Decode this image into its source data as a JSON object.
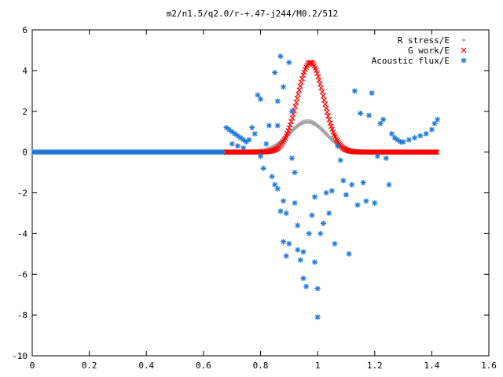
{
  "chart_data": {
    "type": "scatter",
    "title": "m2/n1.5/q2.0/r-+.47-j244/M0.2/512",
    "xlabel": "",
    "ylabel": "",
    "xlim": [
      0,
      1.6
    ],
    "ylim": [
      -10,
      6
    ],
    "x_ticks": [
      "0",
      "0.2",
      "0.4",
      "0.6",
      "0.8",
      "1",
      "1.2",
      "1.4",
      "1.6"
    ],
    "y_ticks": [
      "-10",
      "-8",
      "-6",
      "-4",
      "-2",
      "0",
      "2",
      "4",
      "6"
    ],
    "grid": false,
    "legend_position": "top-right",
    "series": [
      {
        "name": "Acoustic flux/E",
        "marker": "asterisk",
        "color": "#1e78d8",
        "points": [
          [
            0.68,
            1.2
          ],
          [
            0.69,
            1.1
          ],
          [
            0.7,
            1.0
          ],
          [
            0.71,
            0.9
          ],
          [
            0.72,
            0.8
          ],
          [
            0.73,
            0.7
          ],
          [
            0.74,
            0.6
          ],
          [
            0.75,
            0.5
          ],
          [
            0.7,
            0.4
          ],
          [
            0.72,
            0.3
          ],
          [
            0.74,
            0.2
          ],
          [
            0.76,
            0.6
          ],
          [
            0.77,
            1.2
          ],
          [
            0.78,
            0.9
          ],
          [
            0.79,
            2.8
          ],
          [
            0.8,
            2.6
          ],
          [
            0.8,
            -0.2
          ],
          [
            0.81,
            -0.8
          ],
          [
            0.82,
            0.4
          ],
          [
            0.83,
            1.3
          ],
          [
            0.84,
            -1.2
          ],
          [
            0.85,
            -1.6
          ],
          [
            0.86,
            -1.8
          ],
          [
            0.86,
            1.3
          ],
          [
            0.87,
            4.7
          ],
          [
            0.88,
            3.2
          ],
          [
            0.88,
            -2.4
          ],
          [
            0.89,
            -3.0
          ],
          [
            0.85,
            3.9
          ],
          [
            0.86,
            2.5
          ],
          [
            0.87,
            -2.9
          ],
          [
            0.88,
            -4.4
          ],
          [
            0.89,
            -5.1
          ],
          [
            0.9,
            -4.5
          ],
          [
            0.9,
            4.4
          ],
          [
            0.91,
            2.0
          ],
          [
            0.91,
            -0.3
          ],
          [
            0.92,
            -1.0
          ],
          [
            0.92,
            -2.5
          ],
          [
            0.93,
            -3.6
          ],
          [
            0.93,
            -4.8
          ],
          [
            0.94,
            -5.3
          ],
          [
            0.95,
            -4.9
          ],
          [
            0.95,
            -6.2
          ],
          [
            0.96,
            -6.6
          ],
          [
            0.97,
            -4.0
          ],
          [
            0.98,
            -3.1
          ],
          [
            0.99,
            -2.2
          ],
          [
            0.99,
            -5.4
          ],
          [
            1.0,
            -6.7
          ],
          [
            1.0,
            -8.1
          ],
          [
            1.01,
            -4.0
          ],
          [
            1.02,
            -3.5
          ],
          [
            1.03,
            -2.0
          ],
          [
            1.04,
            -3.0
          ],
          [
            1.05,
            -1.9
          ],
          [
            1.06,
            -4.5
          ],
          [
            1.07,
            0.3
          ],
          [
            1.08,
            -0.4
          ],
          [
            1.09,
            -1.4
          ],
          [
            1.1,
            -2.1
          ],
          [
            1.11,
            -5.0
          ],
          [
            1.12,
            -1.6
          ],
          [
            1.13,
            3.0
          ],
          [
            1.14,
            -2.6
          ],
          [
            1.15,
            1.9
          ],
          [
            1.16,
            -1.5
          ],
          [
            1.17,
            -2.4
          ],
          [
            1.18,
            1.8
          ],
          [
            1.19,
            2.9
          ],
          [
            1.2,
            -2.5
          ],
          [
            1.21,
            -0.2
          ],
          [
            1.22,
            1.4
          ],
          [
            1.23,
            1.6
          ],
          [
            1.24,
            -0.3
          ],
          [
            1.25,
            -1.6
          ],
          [
            1.26,
            0.9
          ],
          [
            1.27,
            0.7
          ],
          [
            1.28,
            0.6
          ],
          [
            1.29,
            0.5
          ],
          [
            1.3,
            0.5
          ],
          [
            1.32,
            0.6
          ],
          [
            1.34,
            0.7
          ],
          [
            1.36,
            0.8
          ],
          [
            1.38,
            0.9
          ],
          [
            1.4,
            1.1
          ],
          [
            1.41,
            1.4
          ],
          [
            1.42,
            1.6
          ]
        ]
      },
      {
        "name": "R stress/E",
        "marker": "plus",
        "color": "#a0a0a0",
        "curve": {
          "peak_x": 0.965,
          "peak_y": 1.5,
          "width": 0.09,
          "x_start": 0.68,
          "x_end": 1.42
        }
      },
      {
        "name": "G work/E",
        "marker": "cross",
        "color": "#ff0000",
        "curve": {
          "peak_x": 0.975,
          "peak_y": 4.4,
          "width": 0.065,
          "x_start": 0.68,
          "x_end": 1.42
        }
      }
    ],
    "baseline": {
      "series": "Acoustic flux/E",
      "x_start": 0,
      "x_end": 0.68,
      "y": 0
    }
  }
}
